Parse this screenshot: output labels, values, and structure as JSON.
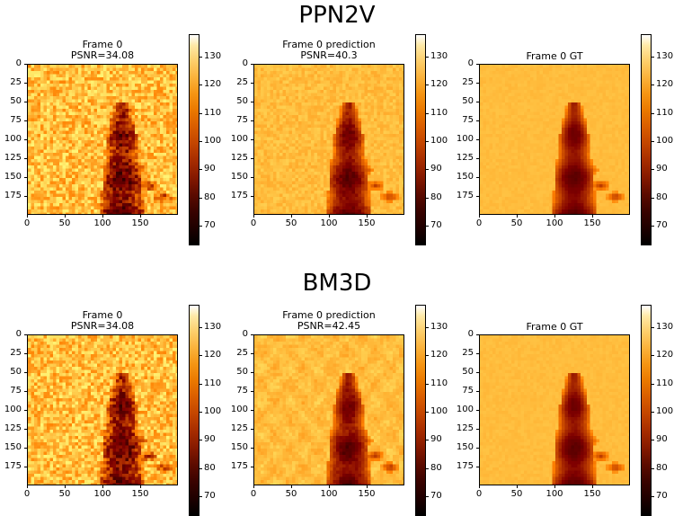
{
  "section_titles": [
    "PPN2V",
    "BM3D"
  ],
  "chart_data": [
    {
      "type": "heatmap",
      "group": "PPN2V",
      "title_lines": [
        "Frame 0",
        "PSNR=34.08"
      ],
      "variant": "noisy",
      "xticks": [
        "0",
        "50",
        "100",
        "150"
      ],
      "yticks": [
        "0",
        "25",
        "50",
        "75",
        "100",
        "125",
        "150",
        "175"
      ],
      "colorbar_ticks": [
        "70",
        "80",
        "90",
        "100",
        "110",
        "120",
        "130"
      ],
      "colormap": "afmhot",
      "xlim": [
        0,
        200
      ],
      "ylim": [
        200,
        0
      ]
    },
    {
      "type": "heatmap",
      "group": "PPN2V",
      "title_lines": [
        "Frame 0 prediction",
        "PSNR=40.3"
      ],
      "variant": "denoised",
      "xticks": [
        "0",
        "50",
        "100",
        "150"
      ],
      "yticks": [
        "0",
        "25",
        "50",
        "75",
        "100",
        "125",
        "150",
        "175"
      ],
      "colorbar_ticks": [
        "70",
        "80",
        "90",
        "100",
        "110",
        "120",
        "130"
      ],
      "colormap": "afmhot",
      "xlim": [
        0,
        200
      ],
      "ylim": [
        200,
        0
      ]
    },
    {
      "type": "heatmap",
      "group": "PPN2V",
      "title_lines": [
        "Frame 0 GT"
      ],
      "variant": "gt",
      "xticks": [
        "0",
        "50",
        "100",
        "150"
      ],
      "yticks": [
        "0",
        "25",
        "50",
        "75",
        "100",
        "125",
        "150",
        "175"
      ],
      "colorbar_ticks": [
        "70",
        "80",
        "90",
        "100",
        "110",
        "120",
        "130"
      ],
      "colormap": "afmhot",
      "xlim": [
        0,
        200
      ],
      "ylim": [
        200,
        0
      ]
    },
    {
      "type": "heatmap",
      "group": "BM3D",
      "title_lines": [
        "Frame 0",
        "PSNR=34.08"
      ],
      "variant": "noisy",
      "xticks": [
        "0",
        "50",
        "100",
        "150"
      ],
      "yticks": [
        "0",
        "25",
        "50",
        "75",
        "100",
        "125",
        "150",
        "175"
      ],
      "colorbar_ticks": [
        "70",
        "80",
        "90",
        "100",
        "110",
        "120",
        "130"
      ],
      "colormap": "afmhot",
      "xlim": [
        0,
        200
      ],
      "ylim": [
        200,
        0
      ]
    },
    {
      "type": "heatmap",
      "group": "BM3D",
      "title_lines": [
        "Frame 0 prediction",
        "PSNR=42.45"
      ],
      "variant": "bm3d",
      "xticks": [
        "0",
        "50",
        "100",
        "150"
      ],
      "yticks": [
        "0",
        "25",
        "50",
        "75",
        "100",
        "125",
        "150",
        "175"
      ],
      "colorbar_ticks": [
        "70",
        "80",
        "90",
        "100",
        "110",
        "120",
        "130"
      ],
      "colormap": "afmhot",
      "xlim": [
        0,
        200
      ],
      "ylim": [
        200,
        0
      ]
    },
    {
      "type": "heatmap",
      "group": "BM3D",
      "title_lines": [
        "Frame 0 GT"
      ],
      "variant": "gt",
      "xticks": [
        "0",
        "50",
        "100",
        "150"
      ],
      "yticks": [
        "0",
        "25",
        "50",
        "75",
        "100",
        "125",
        "150",
        "175"
      ],
      "colorbar_ticks": [
        "70",
        "80",
        "90",
        "100",
        "110",
        "120",
        "130"
      ],
      "colormap": "afmhot",
      "xlim": [
        0,
        200
      ],
      "ylim": [
        200,
        0
      ]
    }
  ]
}
